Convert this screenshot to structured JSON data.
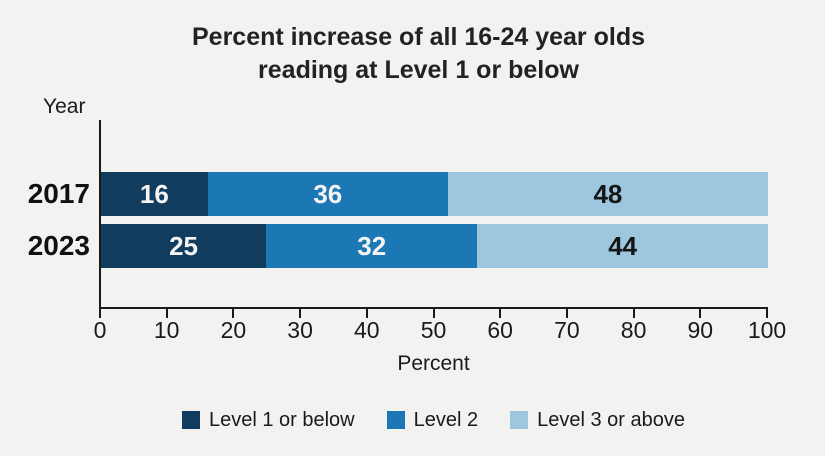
{
  "chart_data": {
    "type": "bar",
    "orientation": "horizontal",
    "stacked": true,
    "title_lines": [
      "Percent increase of all 16-24 year olds",
      "reading at Level 1 or below"
    ],
    "title": "Percent increase of all 16-24 year olds reading at Level 1 or below",
    "ylabel": "Year",
    "xlabel": "Percent",
    "categories": [
      "2017",
      "2023"
    ],
    "series": [
      {
        "name": "Level 1 or below",
        "values": [
          16,
          25
        ],
        "color": "#113c5d",
        "label_color": "#f4f4f4"
      },
      {
        "name": "Level 2",
        "values": [
          36,
          32
        ],
        "color": "#1b78b4",
        "label_color": "#f4f4f4"
      },
      {
        "name": "Level 3 or above",
        "values": [
          48,
          44
        ],
        "color": "#9dc7de",
        "label_color": "#161616"
      }
    ],
    "xlim": [
      0,
      100
    ],
    "xticks": [
      0,
      10,
      20,
      30,
      40,
      50,
      60,
      70,
      80,
      90,
      100
    ],
    "grid": false,
    "legend_position": "bottom"
  },
  "colors": {
    "background": "#f2f2f1",
    "axis": "#1a1a1a",
    "text": "#1a1a1a",
    "level1": "#113c5d",
    "level2": "#1b78b4",
    "level3": "#9dc7de"
  }
}
